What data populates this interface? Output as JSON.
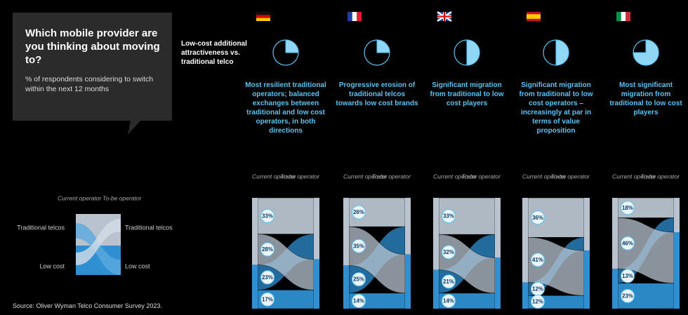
{
  "title": "Which mobile provider are you thinking about moving to?",
  "subtitle": "% of respondents considering to switch within the next 12 months",
  "pie_label": "Low-cost additional attractiveness vs. traditional telco",
  "source": "Source: Oliver Wyman Telco Consumer Survey 2023.",
  "legend": {
    "current": "Current operator",
    "tobe": "To-be operator",
    "traditional": "Traditional telcos",
    "low_cost": "Low cost"
  },
  "countries": [
    {
      "name": "GERMANY",
      "attractiveness": 25,
      "description": "Most resilient traditional operators; balanced exchanges between traditional and low cost operators, in both directions",
      "flows": [
        {
          "value": 33,
          "label": "33%"
        },
        {
          "value": 28,
          "label": "28%"
        },
        {
          "value": 23,
          "label": "23%"
        },
        {
          "value": 17,
          "label": "17%"
        }
      ]
    },
    {
      "name": "FRANCE",
      "attractiveness": 25,
      "description": "Progressive erosion of traditional telcos towards low cost brands",
      "flows": [
        {
          "value": 26,
          "label": "26%"
        },
        {
          "value": 35,
          "label": "35%"
        },
        {
          "value": 25,
          "label": "25%"
        },
        {
          "value": 14,
          "label": "14%"
        }
      ]
    },
    {
      "name": "UK",
      "attractiveness": 50,
      "description": "Significant migration from traditional to low cost players",
      "flows": [
        {
          "value": 33,
          "label": "33%"
        },
        {
          "value": 32,
          "label": "32%"
        },
        {
          "value": 21,
          "label": "21%"
        },
        {
          "value": 14,
          "label": "14%"
        }
      ]
    },
    {
      "name": "SPAIN",
      "attractiveness": 50,
      "description": "Significant migration from traditional to low cost operators – increasingly at par in terms of value proposition",
      "flows": [
        {
          "value": 36,
          "label": "36%"
        },
        {
          "value": 41,
          "label": "41%"
        },
        {
          "value": 12,
          "label": "12%"
        },
        {
          "value": 12,
          "label": "12%"
        }
      ]
    },
    {
      "name": "ITALY",
      "attractiveness": 75,
      "description": "Most significant migration from traditional to low cost players",
      "flows": [
        {
          "value": 18,
          "label": "18%"
        },
        {
          "value": 46,
          "label": "46%"
        },
        {
          "value": 13,
          "label": "13%"
        },
        {
          "value": 23,
          "label": "23%"
        }
      ]
    }
  ]
}
